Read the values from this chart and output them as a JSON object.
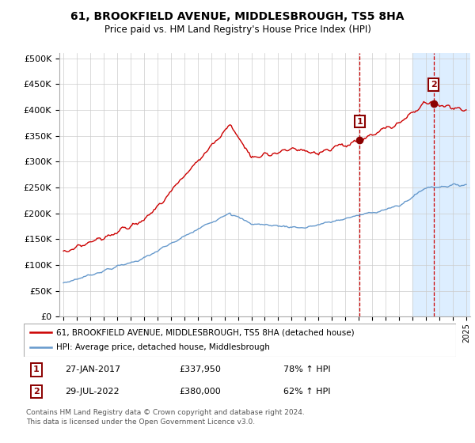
{
  "title": "61, BROOKFIELD AVENUE, MIDDLESBROUGH, TS5 8HA",
  "subtitle": "Price paid vs. HM Land Registry's House Price Index (HPI)",
  "ylabel_ticks": [
    "£0",
    "£50K",
    "£100K",
    "£150K",
    "£200K",
    "£250K",
    "£300K",
    "£350K",
    "£400K",
    "£450K",
    "£500K"
  ],
  "ytick_values": [
    0,
    50000,
    100000,
    150000,
    200000,
    250000,
    300000,
    350000,
    400000,
    450000,
    500000
  ],
  "ylim": [
    0,
    510000
  ],
  "xlim_start": 1994.7,
  "xlim_end": 2025.3,
  "xtick_years": [
    1995,
    1996,
    1997,
    1998,
    1999,
    2000,
    2001,
    2002,
    2003,
    2004,
    2005,
    2006,
    2007,
    2008,
    2009,
    2010,
    2011,
    2012,
    2013,
    2014,
    2015,
    2016,
    2017,
    2018,
    2019,
    2020,
    2021,
    2022,
    2023,
    2024,
    2025
  ],
  "red_color": "#cc0000",
  "blue_color": "#6699cc",
  "highlight_color": "#ddeeff",
  "vline_color": "#cc0000",
  "highlight_start": 2021.0,
  "transaction1_x": 2017.07,
  "transaction1_y": 337950,
  "transaction1_label": "1",
  "transaction2_x": 2022.57,
  "transaction2_y": 380000,
  "transaction2_label": "2",
  "legend_line1": "61, BROOKFIELD AVENUE, MIDDLESBROUGH, TS5 8HA (detached house)",
  "legend_line2": "HPI: Average price, detached house, Middlesbrough",
  "footer1": "Contains HM Land Registry data © Crown copyright and database right 2024.",
  "footer2": "This data is licensed under the Open Government Licence v3.0.",
  "table_row1_label": "1",
  "table_row1_date": "27-JAN-2017",
  "table_row1_price": "£337,950",
  "table_row1_hpi": "78% ↑ HPI",
  "table_row2_label": "2",
  "table_row2_date": "29-JUL-2022",
  "table_row2_price": "£380,000",
  "table_row2_hpi": "62% ↑ HPI"
}
